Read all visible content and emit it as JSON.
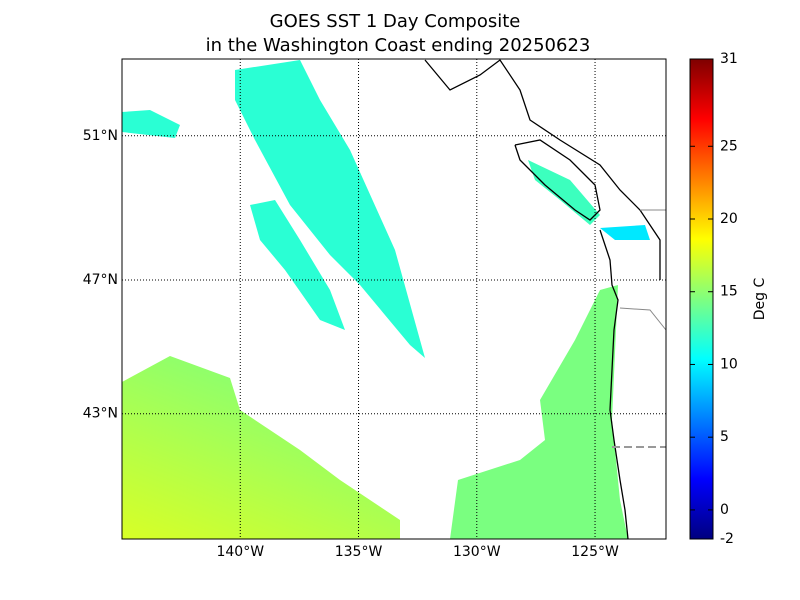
{
  "title_lines": [
    "GOES SST 1 Day Composite",
    "in the Washington Coast ending 20250623"
  ],
  "map": {
    "lon_range": [
      -145,
      -122
    ],
    "lat_range": [
      39,
      53
    ],
    "lon_ticks": [
      {
        "value": -140,
        "label": "140°W"
      },
      {
        "value": -135,
        "label": "135°W"
      },
      {
        "value": -130,
        "label": "130°W"
      },
      {
        "value": -125,
        "label": "125°W"
      }
    ],
    "lat_ticks": [
      {
        "value": 51,
        "label": "51°N"
      },
      {
        "value": 47,
        "label": "47°N"
      },
      {
        "value": 43,
        "label": "43°N"
      }
    ]
  },
  "colorbar": {
    "label": "Deg C",
    "range": [
      -2,
      31
    ],
    "ticks": [
      -2,
      0,
      5,
      10,
      15,
      20,
      25,
      31
    ]
  }
}
